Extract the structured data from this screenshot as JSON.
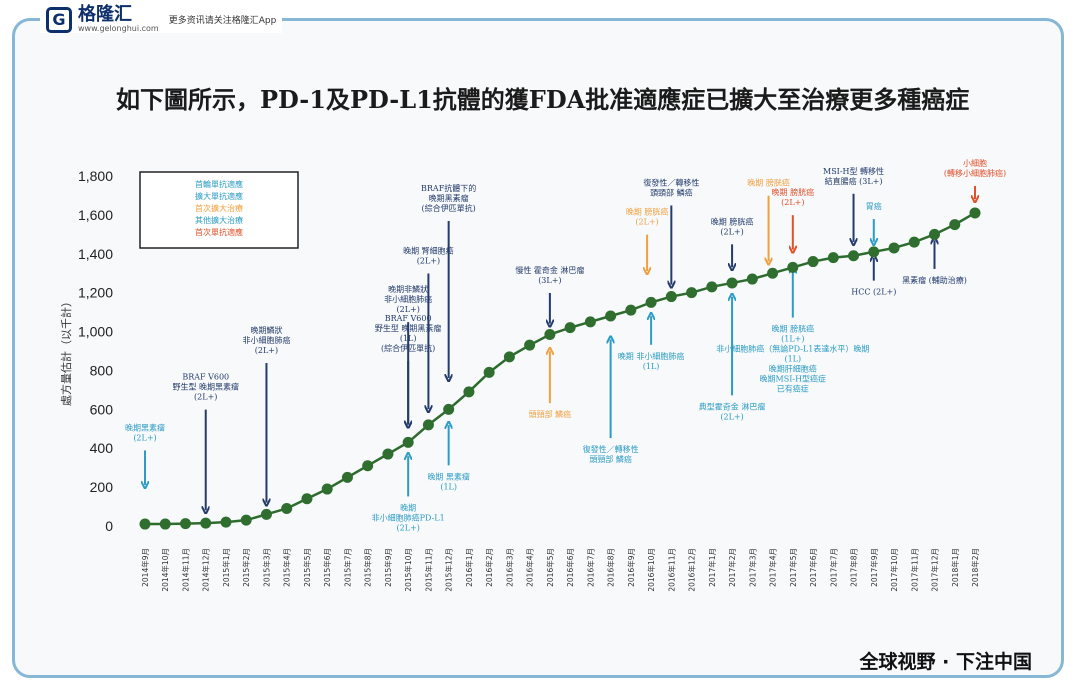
{
  "header": {
    "logo_name": "格隆汇",
    "logo_sub": "www.gelonghui.com",
    "logo_tagline": "更多资讯请关注格隆汇App"
  },
  "title": "如下圖所示，PD-1及PD-L1抗體的獲FDA批准適應症已擴大至治療更多種癌症",
  "footer": "全球视野 · 下注中国",
  "colors": {
    "line": "#2e6b2e",
    "dot": "#2f6e2f",
    "navy": "#243b6b",
    "teal": "#2c9cc4",
    "orange": "#f0a040",
    "red": "#e0502a",
    "frame": "#86b7d6"
  },
  "legend": [
    "首輪單抗適應",
    "擴大單抗適應",
    "首次擴大治療",
    "其他擴大治療",
    "首次單抗適應"
  ],
  "chart_data": {
    "type": "line",
    "title": "如下圖所示，PD-1及PD-L1抗體的獲FDA批准適應症已擴大至治療更多種癌症",
    "ylabel": "處方量估計（以千計）",
    "xlabel": "",
    "ylim": [
      0,
      1800
    ],
    "yticks": [
      0,
      200,
      400,
      600,
      800,
      1000,
      1200,
      1400,
      1600,
      1800
    ],
    "categories": [
      "2014年9月",
      "2014年10月",
      "2014年11月",
      "2014年12月",
      "2015年1月",
      "2015年2月",
      "2015年3月",
      "2015年4月",
      "2015年5月",
      "2015年6月",
      "2015年7月",
      "2015年8月",
      "2015年9月",
      "2015年10月",
      "2015年11月",
      "2015年12月",
      "2016年1月",
      "2016年2月",
      "2016年3月",
      "2016年4月",
      "2016年5月",
      "2016年6月",
      "2016年7月",
      "2016年8月",
      "2016年9月",
      "2016年10月",
      "2016年11月",
      "2016年12月",
      "2017年1月",
      "2017年2月",
      "2017年3月",
      "2017年4月",
      "2017年5月",
      "2017年6月",
      "2017年7月",
      "2017年8月",
      "2017年9月",
      "2017年10月",
      "2017年11月",
      "2017年12月",
      "2018年1月",
      "2018年2月"
    ],
    "values": [
      10,
      10,
      12,
      15,
      20,
      30,
      60,
      90,
      140,
      190,
      250,
      310,
      370,
      430,
      520,
      600,
      690,
      790,
      870,
      930,
      985,
      1020,
      1050,
      1080,
      1110,
      1150,
      1180,
      1200,
      1230,
      1250,
      1270,
      1300,
      1330,
      1360,
      1380,
      1390,
      1410,
      1430,
      1460,
      1500,
      1550,
      1610
    ],
    "grid": false,
    "legend_position": "top-left",
    "annotations": [
      {
        "text": "晚期黑素瘤 (2L+)",
        "at": "2014年9月",
        "color": "teal",
        "label_y": 440,
        "tip": 170
      },
      {
        "text": "BRAF V600 野生型 晚期黑素瘤 (2L+)",
        "at": "2014年12月",
        "color": "navy",
        "label_y": 650,
        "tip": 40
      },
      {
        "text": "晚期鱗狀 非小細胞肺癌 (2L+)",
        "at": "2015年3月",
        "color": "navy",
        "label_y": 890,
        "tip": 80
      },
      {
        "text": "晚期非鱗狀 非小細胞肺癌 (2L+)",
        "at": "2015年10月",
        "color": "navy",
        "label_y": 1100,
        "tip": 480
      },
      {
        "text": "BRAF V600 野生型 晚期黑素瘤 (1L) (綜合伊匹單抗)",
        "at": "2015年10月",
        "color": "navy",
        "label_y": 900,
        "tip": 480
      },
      {
        "text": "晚期 腎細胞癌 (2L+)",
        "at": "2015年11月",
        "color": "navy",
        "label_y": 1350,
        "tip": 560
      },
      {
        "text": "BRAF抗體下的 晚期黑素瘤 (綜合伊匹單抗)",
        "at": "2015年12月",
        "color": "navy",
        "label_y": 1620,
        "tip": 720
      },
      {
        "text": "晚期 非小細胞肺癌PD-L1 (2L+)",
        "at": "2015年10月",
        "color": "teal",
        "label_y": 80,
        "tip": 400
      },
      {
        "text": "晚期 黑素瘤 (1L)",
        "at": "2015年12月",
        "color": "teal",
        "label_y": 240,
        "tip": 560
      },
      {
        "text": "慢性 霍奇金 淋巴瘤 (3L+)",
        "at": "2016年5月",
        "color": "navy",
        "label_y": 1250,
        "tip": 1000
      },
      {
        "text": "頭頸部 鱗癌",
        "at": "2016年5月",
        "color": "orange",
        "label_y": 560,
        "tip": 940
      },
      {
        "text": "復發性／轉移性 頭頸部 鱗癌",
        "at": "2016年8月",
        "color": "teal",
        "label_y": 380,
        "tip": 1000
      },
      {
        "text": "晚期 非小細胞肺癌 (1L)",
        "at": "2016年10月",
        "color": "teal",
        "label_y": 860,
        "tip": 1120
      },
      {
        "text": "晚期 膀胱癌 (2L+)",
        "at": "2016年10月",
        "color": "orange",
        "label_y": 1550,
        "tip": 1270
      },
      {
        "text": "復發性／轉移性 頭頸部 鱗癌",
        "at": "2016年11月",
        "color": "navy",
        "label_y": 1700,
        "tip": 1200
      },
      {
        "text": "晚期 膀胱癌 (2L+)",
        "at": "2017年2月",
        "color": "navy",
        "label_y": 1500,
        "tip": 1290
      },
      {
        "text": "典型霍奇金 淋巴瘤 (2L+)",
        "at": "2017年2月",
        "color": "teal",
        "label_y": 600,
        "tip": 1220
      },
      {
        "text": "晚期 膀胱癌",
        "at": "2017年4月",
        "color": "orange",
        "label_y": 1750,
        "tip": 1320
      },
      {
        "text": "晚期 膀胱癌 (2L+)",
        "at": "2017年5月",
        "color": "red",
        "label_y": 1650,
        "tip": 1380
      },
      {
        "text": "晚期 膀胱癌 (1L+) 非小細胞肺癌（無論PD-L1表達水平）晚期 (1L) 晚期肝細胞癌 晚期MSI-H型癌症 已有癌症",
        "at": "2017年5月",
        "color": "teal",
        "label_y": 1000,
        "tip": 1360
      },
      {
        "text": "MSI-H型 轉移性 結直腸癌 (3L+)",
        "at": "2017年8月",
        "color": "navy",
        "label_y": 1760,
        "tip": 1420
      },
      {
        "text": "胃癌",
        "at": "2017年9月",
        "color": "teal",
        "label_y": 1630,
        "tip": 1420
      },
      {
        "text": "HCC (2L+)",
        "at": "2017年9月",
        "color": "navy",
        "label_y": 1190,
        "tip": 1420
      },
      {
        "text": "黑素瘤 (輔助治療)",
        "at": "2017年12月",
        "color": "navy",
        "label_y": 1250,
        "tip": 1510
      },
      {
        "text": "小細胞 (轉移小細胞肺癌)",
        "at": "2018年2月",
        "color": "red",
        "label_y": 1800,
        "tip": 1640
      }
    ]
  }
}
